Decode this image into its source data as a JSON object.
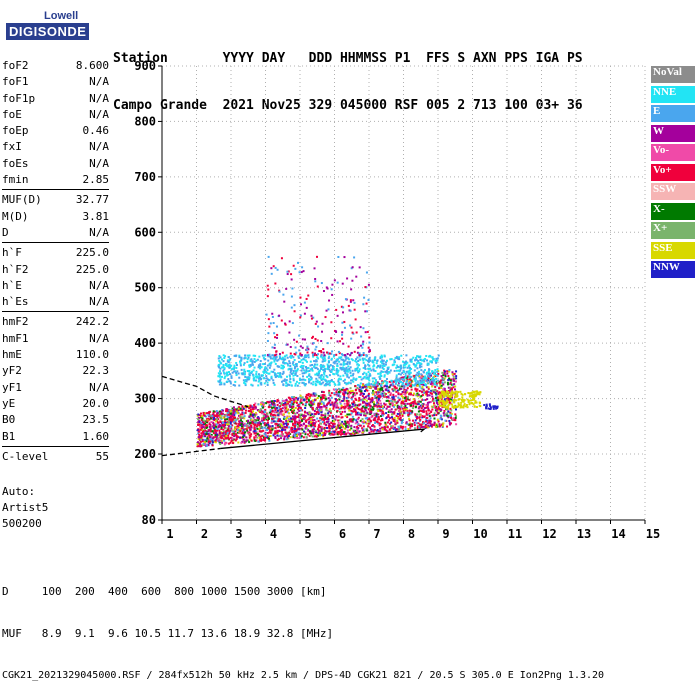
{
  "logo": {
    "line1": "Lowell",
    "line2": "DIGISONDE"
  },
  "header": {
    "row1": "Station       YYYY DAY   DDD HHMMSS P1  FFS S AXN PPS IGA PS",
    "row2": "Campo Grande  2021 Nov25 329 045000 RSF 005 2 713 100 03+ 36"
  },
  "params_groups": [
    [
      {
        "k": "foF2",
        "v": "8.600"
      },
      {
        "k": "foF1",
        "v": "N/A"
      },
      {
        "k": "foF1p",
        "v": "N/A"
      },
      {
        "k": "foE",
        "v": "N/A"
      },
      {
        "k": "foEp",
        "v": "0.46"
      },
      {
        "k": "fxI",
        "v": "N/A"
      },
      {
        "k": "foEs",
        "v": "N/A"
      },
      {
        "k": "fmin",
        "v": "2.85"
      }
    ],
    [
      {
        "k": "MUF(D)",
        "v": "32.77"
      },
      {
        "k": "M(D)",
        "v": "3.81"
      },
      {
        "k": "D",
        "v": "N/A"
      }
    ],
    [
      {
        "k": "h`F",
        "v": "225.0"
      },
      {
        "k": "h`F2",
        "v": "225.0"
      },
      {
        "k": "h`E",
        "v": "N/A"
      },
      {
        "k": "h`Es",
        "v": "N/A"
      }
    ],
    [
      {
        "k": "hmF2",
        "v": "242.2"
      },
      {
        "k": "hmF1",
        "v": "N/A"
      },
      {
        "k": "hmE",
        "v": "110.0"
      },
      {
        "k": "yF2",
        "v": "22.3"
      },
      {
        "k": "yF1",
        "v": "N/A"
      },
      {
        "k": "yE",
        "v": "20.0"
      },
      {
        "k": "B0",
        "v": "23.5"
      },
      {
        "k": "B1",
        "v": "1.60"
      }
    ],
    [
      {
        "k": "C-level",
        "v": "55"
      }
    ]
  ],
  "auto": {
    "line1": "Auto:",
    "line2": "Artist5",
    "line3": "500200"
  },
  "legend": [
    {
      "label": "NoVal",
      "color": "#8c8c8c"
    },
    {
      "label": "NNE",
      "color": "#22e4f4"
    },
    {
      "label": "E",
      "color": "#4aa6ee"
    },
    {
      "label": "W",
      "color": "#a4009c"
    },
    {
      "label": "Vo-",
      "color": "#f04aa8"
    },
    {
      "label": "Vo+",
      "color": "#f0003c"
    },
    {
      "label": "SSW",
      "color": "#f6b4b4"
    },
    {
      "label": "X-",
      "color": "#007a00"
    },
    {
      "label": "X+",
      "color": "#7ab46c"
    },
    {
      "label": "SSE",
      "color": "#d8d800"
    },
    {
      "label": "NNW",
      "color": "#2020c8"
    }
  ],
  "chart_data": {
    "type": "scatter",
    "title": "",
    "xlabel": "",
    "ylabel": "",
    "xlim": [
      1,
      15
    ],
    "ylim": [
      80,
      900
    ],
    "x_ticks": [
      1,
      2,
      3,
      4,
      5,
      6,
      7,
      8,
      9,
      10,
      11,
      12,
      13,
      14,
      15
    ],
    "y_ticks": [
      80,
      200,
      300,
      400,
      500,
      600,
      700,
      800,
      900
    ],
    "grid": "dotted",
    "trace_region": {
      "freq_range_mhz": [
        2.0,
        10.7
      ],
      "height_range_km": [
        210,
        560
      ]
    },
    "profile_solid": {
      "freq": [
        2.7,
        8.6,
        8.5
      ],
      "height": [
        210,
        245,
        240
      ]
    },
    "profile_dashed_lower": {
      "freq": [
        1.0,
        2.7
      ],
      "height": [
        197,
        210
      ]
    },
    "profile_dashed_upper": {
      "freq": [
        1.0,
        2.0,
        2.5,
        3.5
      ],
      "height": [
        340,
        322,
        305,
        285
      ]
    }
  },
  "footer": {
    "d_row": "D     100  200  400  600  800 1000 1500 3000 [km]",
    "muf_row": "MUF   8.9  9.1  9.6 10.5 11.7 13.6 18.9 32.8 [MHz]",
    "file_row": "CGK21_2021329045000.RSF / 284fx512h 50 kHz 2.5 km / DPS-4D CGK21 821 / 20.5 S 305.0 E Ion2Png 1.3.20"
  }
}
